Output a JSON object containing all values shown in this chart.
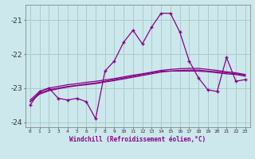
{
  "xlabel": "Windchill (Refroidissement éolien,°C)",
  "background_color": "#cce8ec",
  "grid_color": "#aacccc",
  "line_color": "#880088",
  "x_hours": [
    0,
    1,
    2,
    3,
    4,
    5,
    6,
    7,
    8,
    9,
    10,
    11,
    12,
    13,
    14,
    15,
    16,
    17,
    18,
    19,
    20,
    21,
    22,
    23
  ],
  "main_series": [
    -23.5,
    -23.1,
    -23.0,
    -23.3,
    -23.35,
    -23.3,
    -23.4,
    -23.9,
    -22.5,
    -22.2,
    -21.65,
    -21.3,
    -21.7,
    -21.2,
    -20.8,
    -20.8,
    -21.35,
    -22.2,
    -22.7,
    -23.05,
    -23.1,
    -22.1,
    -22.8,
    -22.75
  ],
  "smooth_series1": [
    -23.4,
    -23.15,
    -23.05,
    -23.0,
    -22.95,
    -22.92,
    -22.88,
    -22.85,
    -22.8,
    -22.75,
    -22.7,
    -22.65,
    -22.6,
    -22.55,
    -22.5,
    -22.5,
    -22.5,
    -22.5,
    -22.5,
    -22.52,
    -22.55,
    -22.58,
    -22.6,
    -22.65
  ],
  "smooth_series2": [
    -23.4,
    -23.18,
    -23.08,
    -23.02,
    -22.97,
    -22.93,
    -22.9,
    -22.87,
    -22.82,
    -22.78,
    -22.73,
    -22.68,
    -22.63,
    -22.58,
    -22.53,
    -22.5,
    -22.48,
    -22.47,
    -22.47,
    -22.5,
    -22.52,
    -22.55,
    -22.58,
    -22.62
  ],
  "smooth_series3": [
    -23.35,
    -23.1,
    -23.0,
    -22.95,
    -22.9,
    -22.87,
    -22.83,
    -22.8,
    -22.76,
    -22.72,
    -22.67,
    -22.62,
    -22.58,
    -22.53,
    -22.48,
    -22.45,
    -22.43,
    -22.42,
    -22.42,
    -22.45,
    -22.48,
    -22.52,
    -22.55,
    -22.6
  ],
  "ylim": [
    -24.15,
    -20.55
  ],
  "yticks": [
    -24,
    -23,
    -22,
    -21
  ],
  "xtick_labels": [
    "0",
    "1",
    "2",
    "3",
    "4",
    "5",
    "6",
    "7",
    "8",
    "9",
    "10",
    "11",
    "12",
    "13",
    "14",
    "15",
    "16",
    "17",
    "18",
    "19",
    "20",
    "21",
    "22",
    "23"
  ]
}
